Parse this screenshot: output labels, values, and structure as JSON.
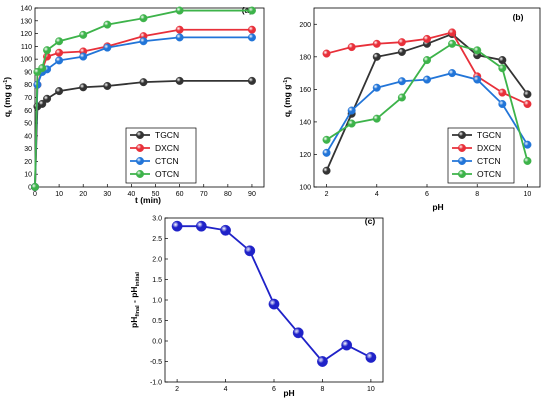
{
  "chart_data": [
    {
      "id": "a",
      "type": "line",
      "panel_label": "(a)",
      "xlabel": "t (min)",
      "ylabel": "q",
      "ylabel_sub": "t",
      "ylabel_unit": " (mg g",
      "ylabel_sup": "-1",
      "ylabel_close": ")",
      "xlim": [
        0,
        95
      ],
      "ylim": [
        0,
        140
      ],
      "xticks": [
        0,
        10,
        20,
        30,
        40,
        50,
        60,
        70,
        80,
        90
      ],
      "yticks": [
        0,
        10,
        20,
        30,
        40,
        50,
        60,
        70,
        80,
        90,
        100,
        110,
        120,
        130,
        140
      ],
      "legend_position": "lower-right",
      "series": [
        {
          "name": "TGCN",
          "color": "#333333",
          "x": [
            0,
            1,
            3,
            5,
            10,
            20,
            30,
            45,
            60,
            90
          ],
          "y": [
            0,
            63,
            65,
            69,
            75,
            78,
            79,
            82,
            83,
            83
          ]
        },
        {
          "name": "DXCN",
          "color": "#e8303a",
          "x": [
            0,
            1,
            3,
            5,
            10,
            20,
            30,
            45,
            60,
            90
          ],
          "y": [
            0,
            80,
            92,
            102,
            105,
            106,
            110,
            118,
            123,
            123
          ]
        },
        {
          "name": "CTCN",
          "color": "#2275d8",
          "x": [
            0,
            1,
            3,
            5,
            10,
            20,
            30,
            45,
            60,
            90
          ],
          "y": [
            0,
            80,
            90,
            92,
            99,
            102,
            109,
            114,
            117,
            117
          ]
        },
        {
          "name": "OTCN",
          "color": "#3db34a",
          "x": [
            0,
            1,
            3,
            5,
            10,
            20,
            30,
            45,
            60,
            90
          ],
          "y": [
            0,
            90,
            93,
            107,
            114,
            119,
            127,
            132,
            138,
            138
          ]
        }
      ]
    },
    {
      "id": "b",
      "type": "line",
      "panel_label": "(b)",
      "xlabel": "pH",
      "ylabel": "q",
      "ylabel_sub": "t",
      "ylabel_unit": " (mg g",
      "ylabel_sup": "-1",
      "ylabel_close": ")",
      "xlim": [
        1.5,
        10.5
      ],
      "ylim": [
        100,
        210
      ],
      "xticks": [
        2,
        4,
        6,
        8,
        10
      ],
      "yticks": [
        100,
        120,
        140,
        160,
        180,
        200
      ],
      "legend_position": "lower-right",
      "series": [
        {
          "name": "TGCN",
          "color": "#333333",
          "x": [
            2,
            3,
            4,
            5,
            6,
            7,
            8,
            9,
            10
          ],
          "y": [
            110,
            145,
            180,
            183,
            188,
            194,
            181,
            178,
            157
          ]
        },
        {
          "name": "DXCN",
          "color": "#e8303a",
          "x": [
            2,
            3,
            4,
            5,
            6,
            7,
            8,
            9,
            10
          ],
          "y": [
            182,
            186,
            188,
            189,
            191,
            195,
            168,
            158,
            151
          ]
        },
        {
          "name": "CTCN",
          "color": "#2275d8",
          "x": [
            2,
            3,
            4,
            5,
            6,
            7,
            8,
            9,
            10
          ],
          "y": [
            121,
            147,
            161,
            165,
            166,
            170,
            166,
            151,
            126
          ]
        },
        {
          "name": "OTCN",
          "color": "#3db34a",
          "x": [
            2,
            3,
            4,
            5,
            6,
            7,
            8,
            9,
            10
          ],
          "y": [
            129,
            139,
            142,
            155,
            178,
            188,
            184,
            173,
            116
          ]
        }
      ]
    },
    {
      "id": "c",
      "type": "line",
      "panel_label": "(c)",
      "xlabel": "pH",
      "ylabel": "pH",
      "ylabel_sub": "final",
      "ylabel_mid": " - pH",
      "ylabel_sub2": "initial",
      "xlim": [
        1.5,
        10.5
      ],
      "ylim": [
        -1.0,
        3.0
      ],
      "xticks": [
        2,
        4,
        6,
        8,
        10
      ],
      "yticks": [
        "-1.0",
        "-0.5",
        "0.0",
        "0.5",
        "1.0",
        "1.5",
        "2.0",
        "2.5",
        "3.0"
      ],
      "series": [
        {
          "name": "",
          "color": "#1f22c8",
          "x": [
            2,
            3,
            4,
            5,
            6,
            7,
            8,
            9,
            10
          ],
          "y": [
            2.8,
            2.8,
            2.7,
            2.2,
            0.9,
            0.2,
            -0.5,
            -0.1,
            -0.4
          ]
        }
      ]
    }
  ]
}
